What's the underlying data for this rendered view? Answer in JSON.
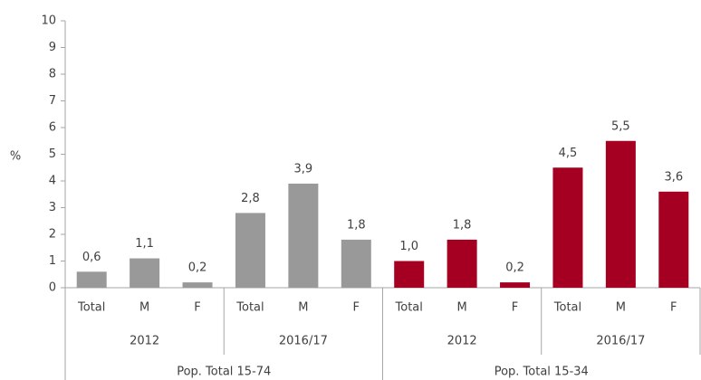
{
  "chart_data": {
    "type": "bar",
    "y_label": "%",
    "categories": [
      "Total",
      "M",
      "F",
      "Total",
      "M",
      "F"
    ],
    "periods": [
      "2012",
      "2016/17"
    ],
    "series": [
      {
        "name": "Pop. Total 15-74",
        "color": "#999999",
        "values": [
          0.6,
          1.1,
          0.2,
          2.8,
          3.9,
          1.8
        ],
        "value_labels": [
          "0,6",
          "1,1",
          "0,2",
          "2,8",
          "3,9",
          "1,8"
        ]
      },
      {
        "name": "Pop. Total 15-34",
        "color": "#a50021",
        "values": [
          1.0,
          1.8,
          0.2,
          4.5,
          5.5,
          3.6
        ],
        "value_labels": [
          "1,0",
          "1,8",
          "0,2",
          "4,5",
          "5,5",
          "3,6"
        ]
      }
    ],
    "ylim": [
      0,
      10
    ],
    "yticks": [
      0,
      1,
      2,
      3,
      4,
      5,
      6,
      7,
      8,
      9,
      10
    ],
    "grid": false
  }
}
